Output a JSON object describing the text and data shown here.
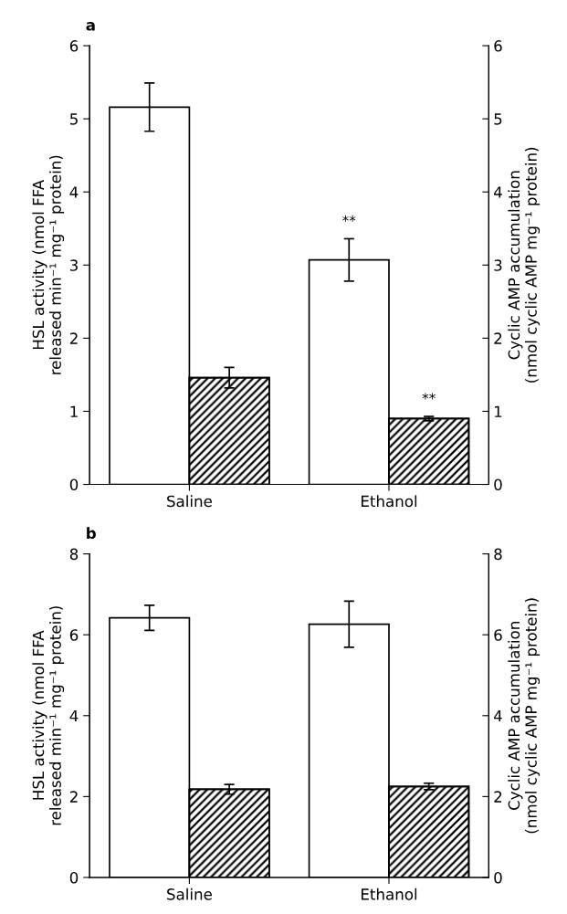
{
  "chart_data": [
    {
      "type": "bar",
      "title": "a",
      "categories": [
        "Saline",
        "Ethanol"
      ],
      "ylabel": "HSL activity (nmol FFA\nreleased min⁻¹ mg⁻¹ protein)",
      "y2label": "Cyclic AMP accumulation\n(nmol cyclic AMP mg⁻¹ protein)",
      "ylim": [
        0,
        6
      ],
      "yticks": [
        0,
        1,
        2,
        3,
        4,
        5,
        6
      ],
      "y2lim": [
        0,
        6
      ],
      "y2ticks": [
        0,
        1,
        2,
        3,
        4,
        5,
        6
      ],
      "grid": false,
      "legend": false,
      "series": [
        {
          "color": "#ffffff",
          "values": [
            5.16,
            3.07
          ],
          "errors": [
            0.33,
            0.29
          ],
          "value_labels": [
            null,
            "**"
          ]
        },
        {
          "color": "#000000",
          "axis": "y2",
          "values": [
            1.46,
            0.9
          ],
          "errors": [
            0.14,
            0.03
          ],
          "value_labels": [
            null,
            "**"
          ]
        }
      ]
    },
    {
      "type": "bar",
      "title": "b",
      "categories": [
        "Saline",
        "Ethanol"
      ],
      "ylabel": "HSL activity (nmol FFA\nreleased min⁻¹ mg⁻¹ protein)",
      "y2label": "Cyclic AMP accumulation\n(nmol cyclic AMP mg⁻¹ protein)",
      "ylim": [
        0,
        8
      ],
      "yticks": [
        0,
        2,
        4,
        6,
        8
      ],
      "y2lim": [
        0,
        8
      ],
      "y2ticks": [
        0,
        2,
        4,
        6,
        8
      ],
      "grid": false,
      "legend": false,
      "series": [
        {
          "color": "#ffffff",
          "values": [
            6.42,
            6.26
          ],
          "errors": [
            0.31,
            0.57
          ]
        },
        {
          "color": "#000000",
          "axis": "y2",
          "values": [
            2.18,
            2.25
          ],
          "errors": [
            0.12,
            0.08
          ]
        }
      ]
    }
  ]
}
